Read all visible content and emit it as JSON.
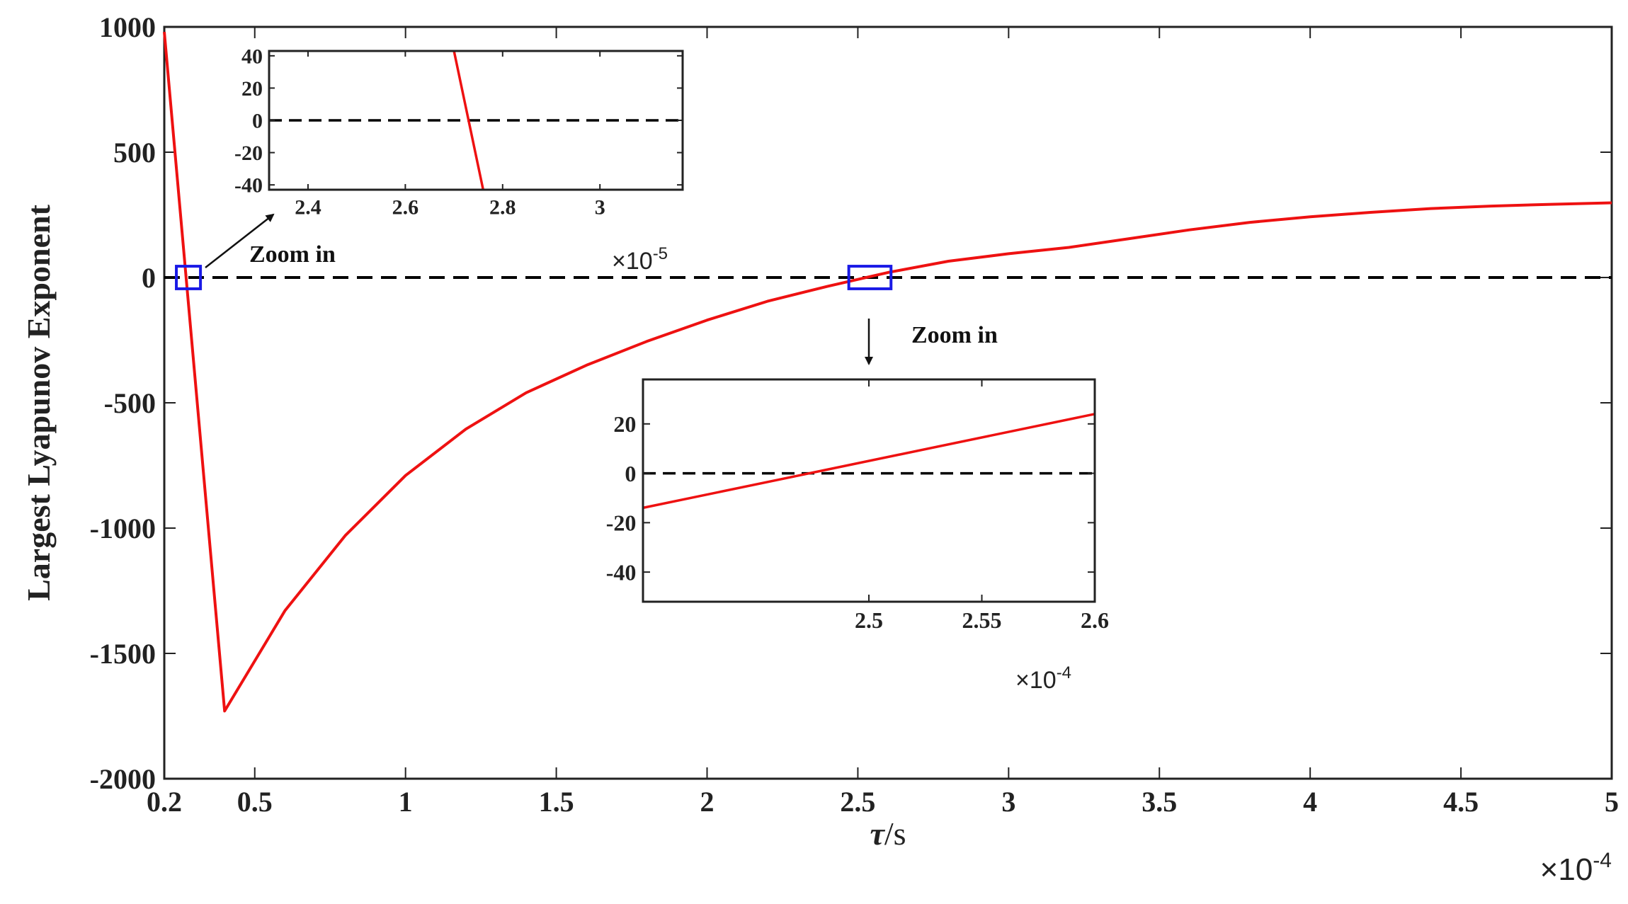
{
  "chart_data": {
    "type": "line",
    "title": "",
    "xlabel_symbol": "τ",
    "xlabel_unit": "/s",
    "ylabel": "Largest Lyapunov Exponent",
    "x_multiplier": "×10",
    "x_multiplier_exp": "-4",
    "xlim": [
      0.2,
      5
    ],
    "ylim": [
      -2000,
      1000
    ],
    "x_ticks": [
      "0.2",
      "0.5",
      "1",
      "1.5",
      "2",
      "2.5",
      "3",
      "3.5",
      "4",
      "4.5",
      "5"
    ],
    "x_tick_values": [
      0.2,
      0.5,
      1,
      1.5,
      2,
      2.5,
      3,
      3.5,
      4,
      4.5,
      5
    ],
    "y_ticks": [
      "1000",
      "500",
      "0",
      "-500",
      "-1000",
      "-1500",
      "-2000"
    ],
    "y_tick_values": [
      1000,
      500,
      0,
      -500,
      -1000,
      -1500,
      -2000
    ],
    "line_color": "#ee1111",
    "zero_line_color": "#000000",
    "highlight_color": "#1a1ae6",
    "series": [
      {
        "x": [
          0.2,
          0.4,
          0.6,
          0.8,
          1.0,
          1.2,
          1.4,
          1.6,
          1.8,
          2.0,
          2.2,
          2.4,
          2.6,
          2.8,
          3.0,
          3.2,
          3.4,
          3.6,
          3.8,
          4.0,
          4.2,
          4.4,
          4.6,
          4.8,
          5.0
        ],
        "y": [
          980,
          -1730,
          -1330,
          -1030,
          -790,
          -605,
          -460,
          -350,
          -255,
          -170,
          -95,
          -35,
          20,
          65,
          95,
          120,
          155,
          190,
          220,
          242,
          260,
          275,
          285,
          292,
          298
        ]
      }
    ],
    "zoom_boxes": [
      {
        "x_range": [
          0.24,
          0.32
        ],
        "y_range": [
          -45,
          45
        ]
      },
      {
        "x_range": [
          2.47,
          2.61
        ],
        "y_range": [
          -45,
          45
        ]
      }
    ],
    "annotations": [
      "Zoom in",
      "Zoom in"
    ],
    "insets": [
      {
        "xlim": [
          2.32,
          3.17
        ],
        "ylim": [
          -43,
          43
        ],
        "x_ticks": [
          "2.4",
          "2.6",
          "2.8",
          "3"
        ],
        "x_tick_values": [
          2.4,
          2.6,
          2.8,
          3.0
        ],
        "y_ticks": [
          "40",
          "20",
          "0",
          "-20",
          "-40"
        ],
        "y_tick_values": [
          40,
          20,
          0,
          -20,
          -40
        ],
        "x_multiplier": "×10",
        "x_multiplier_exp": "-5",
        "series": [
          {
            "x": [
              2.7,
              2.76
            ],
            "y": [
              43,
              -43
            ]
          }
        ]
      },
      {
        "xlim": [
          2.4,
          2.6
        ],
        "ylim": [
          -52,
          38
        ],
        "x_ticks": [
          "2.5",
          "2.55",
          "2.6"
        ],
        "x_tick_values": [
          2.5,
          2.55,
          2.6
        ],
        "y_ticks": [
          "20",
          "0",
          "-20",
          "-40"
        ],
        "y_tick_values": [
          20,
          0,
          -20,
          -40
        ],
        "x_multiplier": "×10",
        "x_multiplier_exp": "-4",
        "series": [
          {
            "x": [
              2.4,
              2.6
            ],
            "y": [
              -14,
              24
            ]
          }
        ]
      }
    ]
  }
}
